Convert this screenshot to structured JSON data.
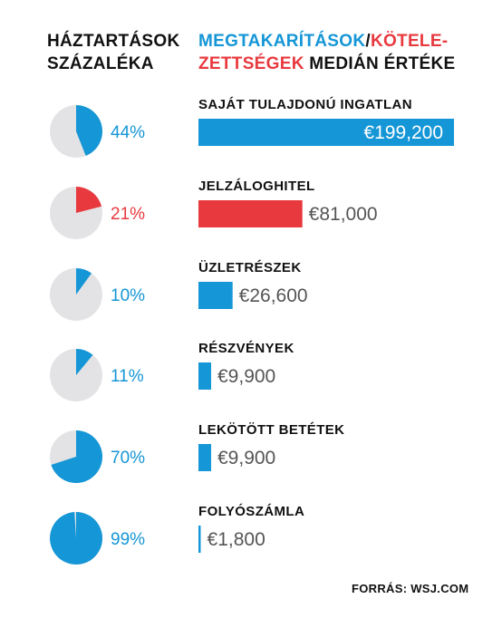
{
  "header": {
    "left_line1": "HÁZTARTÁSOK",
    "left_line2": "SZÁZALÉKA",
    "right_blue": "MEGTAKARÍTÁSOK",
    "right_slash": "/",
    "right_red_1": "KÖTELE-",
    "right_red_2": "ZETTSÉGEK",
    "right_dark": " MEDIÁN ÉRTÉKE"
  },
  "colors": {
    "savings": "#1596d6",
    "debt": "#e8393f",
    "pie_bg": "#e3e3e5"
  },
  "source": "FORRÁS: WSJ.COM",
  "chart_data": {
    "type": "bar",
    "categories": [
      "SAJÁT TULAJDONÚ  INGATLAN",
      "JELZÁLOGHITEL",
      "ÜZLETRÉSZEK",
      "RÉSZVÉNYEK",
      "LEKÖTÖTT BETÉTEK",
      "FOLYÓSZÁMLA"
    ],
    "values": [
      199200,
      81000,
      26600,
      9900,
      9900,
      1800
    ],
    "value_labels": [
      "€199,200",
      "€81,000",
      "€26,600",
      "€9,900",
      "€9,900",
      "€1,800"
    ],
    "kinds": [
      "savings",
      "debt",
      "savings",
      "savings",
      "savings",
      "savings"
    ],
    "household_pct": [
      44,
      21,
      10,
      11,
      70,
      99
    ],
    "household_pct_labels": [
      "44%",
      "21%",
      "10%",
      "11%",
      "70%",
      "99%"
    ]
  }
}
